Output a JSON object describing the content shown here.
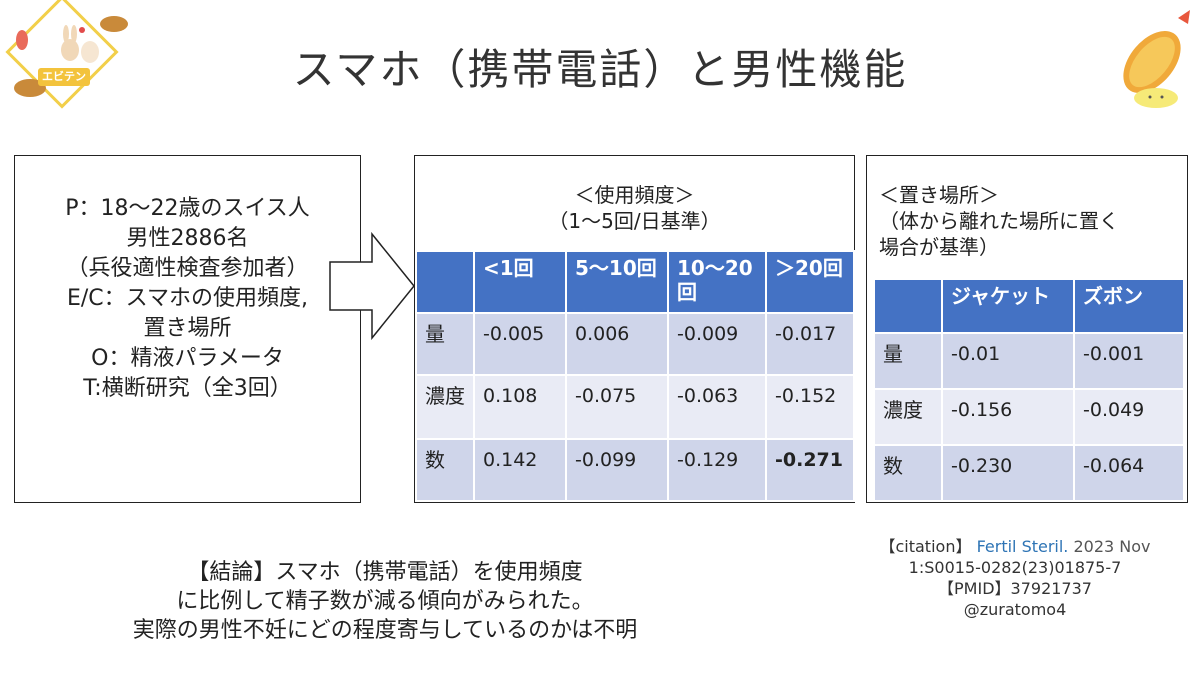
{
  "logo": {
    "text": "エビテン"
  },
  "title": "スマホ（携帯電話）と男性機能",
  "pecot": {
    "lines": [
      "P：18〜22歳のスイス人",
      "男性2886名",
      "（兵役適性検査参加者）",
      "E/C：スマホの使用頻度,",
      "置き場所",
      "O：精液パラメータ",
      "T:横断研究（全3回）"
    ]
  },
  "table1": {
    "caption": [
      "＜使用頻度＞",
      "（1〜5回/日基準）"
    ],
    "headers": [
      "",
      "<1回",
      "5〜10回",
      "10〜20回",
      "＞20回"
    ],
    "rows": [
      {
        "label": "量",
        "values": [
          "-0.005",
          "0.006",
          "-0.009",
          "-0.017"
        ]
      },
      {
        "label": "濃度",
        "values": [
          "0.108",
          "-0.075",
          "-0.063",
          "-0.152"
        ]
      },
      {
        "label": "数",
        "values": [
          "0.142",
          "-0.099",
          "-0.129",
          "-0.271"
        ]
      }
    ]
  },
  "table2": {
    "caption": [
      "＜置き場所＞",
      "（体から離れた場所に置く",
      "場合が基準）"
    ],
    "headers": [
      "",
      "ジャケット",
      "ズボン"
    ],
    "rows": [
      {
        "label": "量",
        "values": [
          "-0.01",
          "-0.001"
        ]
      },
      {
        "label": "濃度",
        "values": [
          "-0.156",
          "-0.049"
        ]
      },
      {
        "label": "数",
        "values": [
          "-0.230",
          "-0.064"
        ]
      }
    ]
  },
  "conclusion": [
    "【結論】スマホ（携帯電話）を使用頻度",
    "に比例して精子数が減る傾向がみられた。",
    "実際の男性不妊にどの程度寄与しているのかは不明"
  ],
  "citation": {
    "label": "【citation】",
    "journal": "Fertil Steril.",
    "date": "2023 Nov",
    "doi": "1:S0015-0282(23)01875-7",
    "pmid": "【PMID】37921737",
    "handle": "@zuratomo4"
  },
  "colors": {
    "header_blue": "#4472c4",
    "row_dark": "#cfd5ea",
    "row_light": "#e9ebf5",
    "logo_yellow": "#f3c33c",
    "journal_blue": "#2e74b5"
  }
}
